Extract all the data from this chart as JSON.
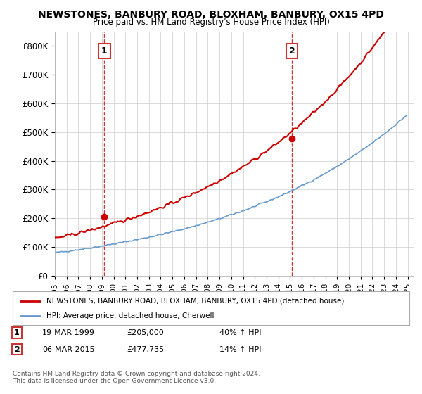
{
  "title": "NEWSTONES, BANBURY ROAD, BLOXHAM, BANBURY, OX15 4PD",
  "subtitle": "Price paid vs. HM Land Registry's House Price Index (HPI)",
  "x_start_year": 1995,
  "x_end_year": 2025,
  "y_min": 0,
  "y_max": 850000,
  "y_ticks": [
    0,
    100000,
    200000,
    300000,
    400000,
    500000,
    600000,
    700000,
    800000
  ],
  "y_tick_labels": [
    "£0",
    "£100K",
    "£200K",
    "£300K",
    "£400K",
    "£500K",
    "£600K",
    "£700K",
    "£800K"
  ],
  "sale1_date": 1999.21,
  "sale1_price": 205000,
  "sale1_label": "1",
  "sale2_date": 2015.17,
  "sale2_price": 477735,
  "sale2_label": "2",
  "red_line_color": "#cc0000",
  "blue_line_color": "#6699cc",
  "annotation_box_color": "#cc3333",
  "vline_color": "#cc3333",
  "grid_color": "#cccccc",
  "background_color": "#ffffff",
  "legend_entry1": "NEWSTONES, BANBURY ROAD, BLOXHAM, BANBURY, OX15 4PD (detached house)",
  "legend_entry2": "HPI: Average price, detached house, Cherwell",
  "table_row1": [
    "1",
    "19-MAR-1999",
    "£205,000",
    "40% ↑ HPI"
  ],
  "table_row2": [
    "2",
    "06-MAR-2015",
    "£477,735",
    "14% ↑ HPI"
  ],
  "footnote": "Contains HM Land Registry data © Crown copyright and database right 2024.\nThis data is licensed under the Open Government Licence v3.0."
}
